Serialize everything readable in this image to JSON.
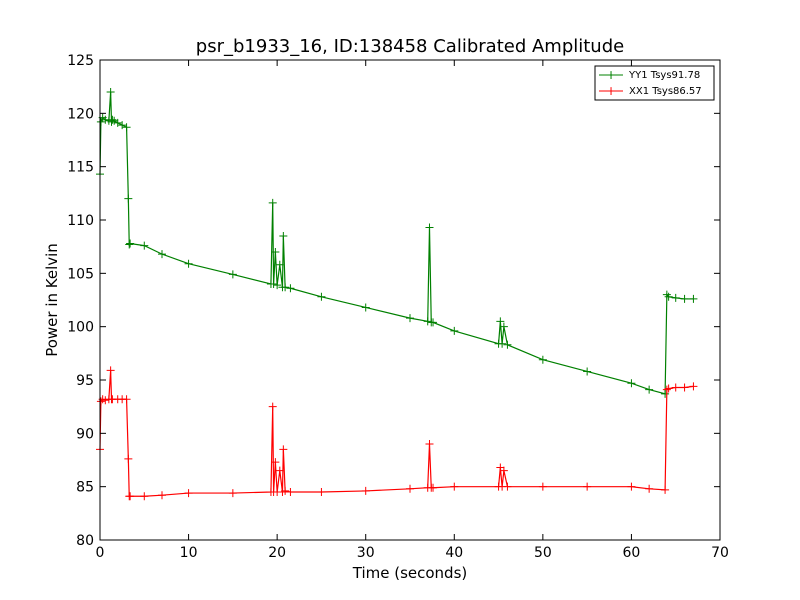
{
  "chart_data": {
    "type": "line",
    "title": "psr_b1933_16, ID:138458 Calibrated Amplitude",
    "xlabel": "Time (seconds)",
    "ylabel": "Power in Kelvin",
    "xlim": [
      0,
      70
    ],
    "ylim": [
      80,
      125
    ],
    "xticks": [
      "0",
      "10",
      "20",
      "30",
      "40",
      "50",
      "60",
      "70"
    ],
    "yticks": [
      "80",
      "85",
      "90",
      "95",
      "100",
      "105",
      "110",
      "115",
      "120",
      "125"
    ],
    "grid": false,
    "legend_position": "top-right",
    "marker": "+",
    "series": [
      {
        "name": "YY1 Tsys91.78",
        "color": "#008000",
        "x": [
          0.0,
          0.1,
          0.3,
          0.6,
          1.0,
          1.2,
          1.3,
          1.4,
          1.6,
          2.0,
          2.5,
          3.0,
          3.2,
          3.3,
          3.4,
          5.0,
          7.0,
          10.0,
          15.0,
          19.3,
          19.5,
          19.6,
          19.8,
          20.0,
          20.3,
          20.6,
          20.7,
          20.9,
          21.5,
          25.0,
          30.0,
          35.0,
          37.0,
          37.2,
          37.4,
          37.6,
          40.0,
          45.0,
          45.2,
          45.4,
          45.6,
          46.0,
          50.0,
          55.0,
          60.0,
          62.0,
          63.8,
          64.0,
          64.2,
          65.0,
          66.0,
          67.0
        ],
        "y": [
          114.3,
          119.2,
          119.6,
          119.4,
          119.3,
          122.0,
          119.2,
          119.4,
          119.3,
          119.1,
          118.9,
          118.7,
          112.0,
          107.7,
          107.8,
          107.6,
          106.8,
          105.9,
          104.9,
          104.0,
          111.6,
          104.0,
          107.0,
          103.9,
          105.8,
          103.7,
          108.5,
          103.7,
          103.6,
          102.8,
          101.8,
          100.8,
          100.5,
          109.3,
          100.4,
          100.4,
          99.6,
          98.4,
          100.5,
          98.4,
          100.0,
          98.3,
          96.9,
          95.8,
          94.7,
          94.1,
          93.7,
          103.0,
          102.8,
          102.7,
          102.6,
          102.6
        ]
      },
      {
        "name": "XX1 Tsys86.57",
        "color": "#ff0000",
        "x": [
          0.0,
          0.1,
          0.3,
          0.6,
          1.0,
          1.2,
          1.3,
          1.4,
          2.0,
          2.5,
          3.0,
          3.2,
          3.3,
          3.4,
          5.0,
          7.0,
          10.0,
          15.0,
          19.3,
          19.5,
          19.6,
          19.8,
          20.0,
          20.3,
          20.6,
          20.7,
          20.9,
          21.5,
          25.0,
          30.0,
          35.0,
          37.0,
          37.2,
          37.4,
          37.6,
          40.0,
          45.0,
          45.2,
          45.4,
          45.6,
          46.0,
          50.0,
          55.0,
          60.0,
          62.0,
          63.8,
          64.0,
          64.2,
          65.0,
          66.0,
          67.0
        ],
        "y": [
          88.5,
          93.0,
          93.2,
          93.1,
          93.2,
          95.9,
          93.2,
          93.2,
          93.2,
          93.2,
          93.2,
          87.6,
          84.1,
          84.1,
          84.1,
          84.2,
          84.4,
          84.4,
          84.5,
          92.5,
          84.5,
          87.3,
          84.5,
          86.5,
          84.5,
          88.5,
          84.6,
          84.5,
          84.5,
          84.6,
          84.8,
          84.9,
          89.0,
          84.9,
          84.9,
          85.0,
          85.0,
          86.8,
          85.0,
          86.5,
          85.0,
          85.0,
          85.0,
          85.0,
          84.8,
          84.7,
          94.1,
          94.2,
          94.3,
          94.3,
          94.4
        ]
      }
    ]
  }
}
